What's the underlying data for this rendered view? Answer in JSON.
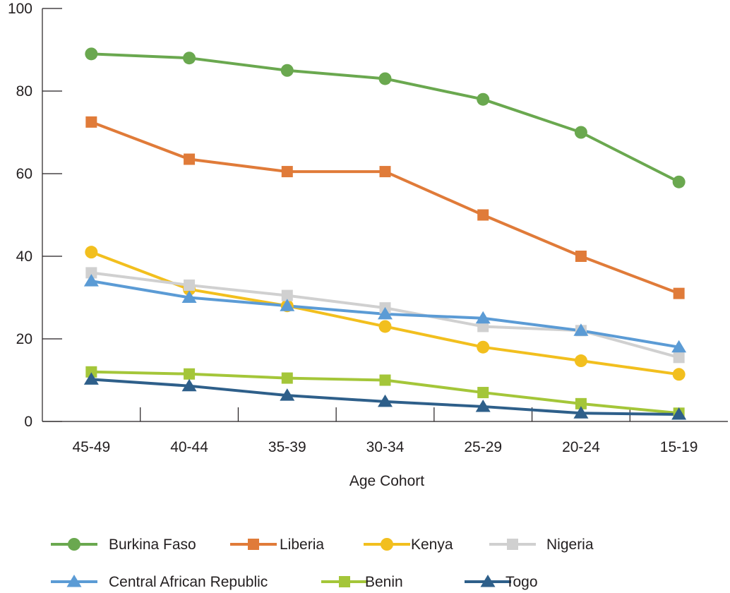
{
  "chart_data": {
    "type": "line",
    "title": "",
    "xlabel": "Age Cohort",
    "ylabel": "",
    "ylim": [
      0,
      100
    ],
    "yticks": [
      0,
      20,
      40,
      60,
      80,
      100
    ],
    "grid": false,
    "legend_position": "bottom",
    "categories": [
      "45-49",
      "40-44",
      "35-39",
      "30-34",
      "25-29",
      "20-24",
      "15-19"
    ],
    "series": [
      {
        "name": "Burkina Faso",
        "color": "#6aa84f",
        "marker": "circle",
        "values": [
          89,
          88,
          85,
          83,
          78,
          70,
          58
        ]
      },
      {
        "name": "Liberia",
        "color": "#e07b39",
        "marker": "square",
        "values": [
          72.5,
          63.5,
          60.5,
          60.5,
          50,
          40,
          31
        ]
      },
      {
        "name": "Kenya",
        "color": "#f2bf1e",
        "marker": "circle",
        "values": [
          41,
          32,
          28,
          23,
          18,
          14.7,
          11.4
        ]
      },
      {
        "name": "Nigeria",
        "color": "#d0d0d0",
        "marker": "square",
        "values": [
          36,
          33,
          30.5,
          27.5,
          23,
          22,
          15.5
        ]
      },
      {
        "name": "Central African Republic",
        "color": "#5b9bd5",
        "marker": "triangle",
        "values": [
          34,
          30,
          28,
          26,
          25,
          22,
          18
        ]
      },
      {
        "name": "Benin",
        "color": "#a4c639",
        "marker": "square",
        "values": [
          12,
          11.5,
          10.5,
          10,
          7,
          4.3,
          2
        ]
      },
      {
        "name": "Togo",
        "color": "#2e5f8a",
        "marker": "triangle",
        "values": [
          10.2,
          8.6,
          6.3,
          4.8,
          3.6,
          2,
          1.7
        ]
      }
    ]
  }
}
